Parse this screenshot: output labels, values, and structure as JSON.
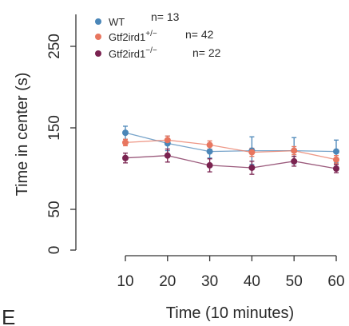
{
  "chart_data": {
    "type": "line",
    "title": "",
    "xlabel": "Time (10 minutes)",
    "ylabel": "Time in center (s)",
    "x": [
      10,
      20,
      30,
      40,
      50,
      60
    ],
    "x_tick_labels": [
      "10",
      "20",
      "30",
      "40",
      "50",
      "60"
    ],
    "y_tick_labels": [
      "0",
      "50",
      "150",
      "250"
    ],
    "y_ticks": [
      0,
      50,
      150,
      250
    ],
    "ylim": [
      0,
      300
    ],
    "xlim": [
      8,
      62
    ],
    "grid": false,
    "legend_position": "top-left",
    "series": [
      {
        "name": "WT",
        "n_label": "n= 13",
        "color": "#4a86b8",
        "values": [
          144,
          131,
          121,
          122,
          122,
          121
        ],
        "error": [
          8,
          9,
          8,
          17,
          16,
          14
        ]
      },
      {
        "name": "Gtf2ird1",
        "superscript": "+/−",
        "n_label": "n= 42",
        "color": "#e8765f",
        "values": [
          132,
          135,
          129,
          120,
          122,
          111
        ],
        "error": [
          4,
          5,
          5,
          5,
          5,
          5
        ]
      },
      {
        "name": "Gtf2ird1",
        "superscript": "−/−",
        "n_label": "n= 22",
        "color": "#7a2350",
        "values": [
          113,
          116,
          104,
          101,
          109,
          100
        ],
        "error": [
          6,
          8,
          8,
          8,
          6,
          5
        ]
      }
    ]
  },
  "panel_label": "E"
}
